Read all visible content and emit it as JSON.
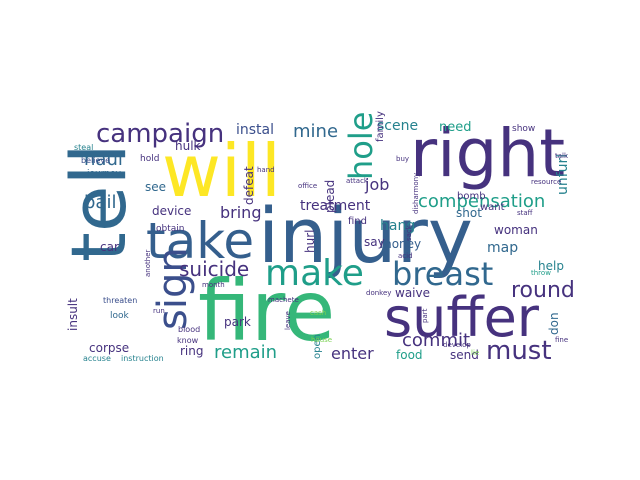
{
  "palette": {
    "dark_purple": "#44337a",
    "purple": "#46327e",
    "indigo": "#3b4f8c",
    "slate_blue": "#355f8d",
    "blue": "#31688e",
    "teal": "#26828e",
    "sea": "#1f9e89",
    "green": "#35b779",
    "lime": "#7ad151",
    "yellow": "#fde725"
  },
  "words": [
    {
      "text": "injury",
      "color": "slate_blue",
      "weight": 1.0,
      "rotated": false
    },
    {
      "text": "fire",
      "color": "green",
      "weight": 0.95,
      "rotated": false
    },
    {
      "text": "will",
      "color": "yellow",
      "weight": 0.9,
      "rotated": false
    },
    {
      "text": "tell",
      "color": "blue",
      "weight": 0.85,
      "rotated": true
    },
    {
      "text": "right",
      "color": "purple",
      "weight": 0.8,
      "rotated": false
    },
    {
      "text": "take",
      "color": "slate_blue",
      "weight": 0.8,
      "rotated": false
    },
    {
      "text": "suffer",
      "color": "purple",
      "weight": 0.75,
      "rotated": false
    },
    {
      "text": "make",
      "color": "sea",
      "weight": 0.6,
      "rotated": false
    },
    {
      "text": "breast",
      "color": "blue",
      "weight": 0.55,
      "rotated": false
    },
    {
      "text": "sign",
      "color": "indigo",
      "weight": 0.55,
      "rotated": true
    },
    {
      "text": "hole",
      "color": "sea",
      "weight": 0.5,
      "rotated": true
    },
    {
      "text": "campaign",
      "color": "purple",
      "weight": 0.45,
      "rotated": false
    },
    {
      "text": "compensation",
      "color": "sea",
      "weight": 0.35,
      "rotated": false
    },
    {
      "text": "must",
      "color": "purple",
      "weight": 0.35,
      "rotated": false
    },
    {
      "text": "suicide",
      "color": "purple",
      "weight": 0.3,
      "rotated": false
    },
    {
      "text": "remain",
      "color": "sea",
      "weight": 0.3,
      "rotated": false
    },
    {
      "text": "round",
      "color": "purple",
      "weight": 0.3,
      "rotated": false
    },
    {
      "text": "commit",
      "color": "purple",
      "weight": 0.3,
      "rotated": false
    },
    {
      "text": "enter",
      "color": "purple",
      "weight": 0.28,
      "rotated": false
    },
    {
      "text": "bring",
      "color": "purple",
      "weight": 0.28,
      "rotated": false
    },
    {
      "text": "haul",
      "color": "blue",
      "weight": 0.28,
      "rotated": false
    },
    {
      "text": "job",
      "color": "purple",
      "weight": 0.28,
      "rotated": false
    },
    {
      "text": "mine",
      "color": "blue",
      "weight": 0.25,
      "rotated": false
    },
    {
      "text": "bail",
      "color": "blue",
      "weight": 0.25,
      "rotated": false
    },
    {
      "text": "map",
      "color": "blue",
      "weight": 0.22,
      "rotated": false
    },
    {
      "text": "unfurl",
      "color": "teal",
      "weight": 0.22,
      "rotated": true
    },
    {
      "text": "treatment",
      "color": "purple",
      "weight": 0.2,
      "rotated": false
    },
    {
      "text": "device",
      "color": "purple",
      "weight": 0.2,
      "rotated": false
    },
    {
      "text": "instal",
      "color": "indigo",
      "weight": 0.2,
      "rotated": false
    },
    {
      "text": "hulk",
      "color": "purple",
      "weight": 0.2,
      "rotated": false
    },
    {
      "text": "defeat",
      "color": "purple",
      "weight": 0.2,
      "rotated": true
    },
    {
      "text": "hang",
      "color": "teal",
      "weight": 0.2,
      "rotated": false
    },
    {
      "text": "scene",
      "color": "teal",
      "weight": 0.2,
      "rotated": false
    },
    {
      "text": "need",
      "color": "sea",
      "weight": 0.2,
      "rotated": false
    },
    {
      "text": "money",
      "color": "slate_blue",
      "weight": 0.18,
      "rotated": false
    },
    {
      "text": "shot",
      "color": "blue",
      "weight": 0.2,
      "rotated": false
    },
    {
      "text": "woman",
      "color": "purple",
      "weight": 0.18,
      "rotated": false
    },
    {
      "text": "waive",
      "color": "purple",
      "weight": 0.2,
      "rotated": false
    },
    {
      "text": "say",
      "color": "purple",
      "weight": 0.18,
      "rotated": false
    },
    {
      "text": "park",
      "color": "purple",
      "weight": 0.18,
      "rotated": false
    },
    {
      "text": "ring",
      "color": "purple",
      "weight": 0.18,
      "rotated": false
    },
    {
      "text": "food",
      "color": "sea",
      "weight": 0.18,
      "rotated": false
    },
    {
      "text": "send",
      "color": "purple",
      "weight": 0.18,
      "rotated": false
    },
    {
      "text": "help",
      "color": "teal",
      "weight": 0.18,
      "rotated": false
    },
    {
      "text": "don",
      "color": "blue",
      "weight": 0.18,
      "rotated": true
    },
    {
      "text": "corpse",
      "color": "purple",
      "weight": 0.18,
      "rotated": false
    },
    {
      "text": "insult",
      "color": "purple",
      "weight": 0.18,
      "rotated": true
    },
    {
      "text": "car",
      "color": "purple",
      "weight": 0.18,
      "rotated": false
    },
    {
      "text": "see",
      "color": "blue",
      "weight": 0.15,
      "rotated": false
    },
    {
      "text": "hurl",
      "color": "purple",
      "weight": 0.15,
      "rotated": true
    },
    {
      "text": "plead",
      "color": "purple",
      "weight": 0.15,
      "rotated": true
    },
    {
      "text": "family",
      "color": "purple",
      "weight": 0.12,
      "rotated": true
    },
    {
      "text": "open",
      "color": "teal",
      "weight": 0.12,
      "rotated": true
    },
    {
      "text": "bomb",
      "color": "purple",
      "weight": 0.12,
      "rotated": false
    },
    {
      "text": "want",
      "color": "purple",
      "weight": 0.12,
      "rotated": false
    },
    {
      "text": "find",
      "color": "purple",
      "weight": 0.12,
      "rotated": false
    },
    {
      "text": "show",
      "color": "purple",
      "weight": 0.1,
      "rotated": false
    },
    {
      "text": "obtain",
      "color": "purple",
      "weight": 0.1,
      "rotated": false
    },
    {
      "text": "hold",
      "color": "purple",
      "weight": 0.1,
      "rotated": false
    },
    {
      "text": "journey",
      "color": "blue",
      "weight": 0.1,
      "rotated": false
    },
    {
      "text": "look",
      "color": "blue",
      "weight": 0.1,
      "rotated": false
    },
    {
      "text": "threaten",
      "color": "indigo",
      "weight": 0.08,
      "rotated": false
    },
    {
      "text": "blood",
      "color": "purple",
      "weight": 0.08,
      "rotated": false
    },
    {
      "text": "know",
      "color": "purple",
      "weight": 0.08,
      "rotated": false
    },
    {
      "text": "instruction",
      "color": "teal",
      "weight": 0.08,
      "rotated": false
    },
    {
      "text": "accuse",
      "color": "teal",
      "weight": 0.08,
      "rotated": false
    },
    {
      "text": "believe",
      "color": "indigo",
      "weight": 0.08,
      "rotated": false
    },
    {
      "text": "steal",
      "color": "teal",
      "weight": 0.07,
      "rotated": false
    },
    {
      "text": "hand",
      "color": "purple",
      "weight": 0.07,
      "rotated": false
    },
    {
      "text": "office",
      "color": "purple",
      "weight": 0.07,
      "rotated": false
    },
    {
      "text": "attack",
      "color": "purple",
      "weight": 0.07,
      "rotated": false
    },
    {
      "text": "develop",
      "color": "purple",
      "weight": 0.07,
      "rotated": false
    },
    {
      "text": "staff",
      "color": "purple",
      "weight": 0.07,
      "rotated": false
    },
    {
      "text": "talk",
      "color": "purple",
      "weight": 0.07,
      "rotated": false
    },
    {
      "text": "resource",
      "color": "purple",
      "weight": 0.07,
      "rotated": false
    },
    {
      "text": "machete",
      "color": "purple",
      "weight": 0.07,
      "rotated": false
    },
    {
      "text": "cash",
      "color": "lime",
      "weight": 0.07,
      "rotated": false
    },
    {
      "text": "house",
      "color": "lime",
      "weight": 0.07,
      "rotated": false
    },
    {
      "text": "leave",
      "color": "purple",
      "weight": 0.07,
      "rotated": true
    },
    {
      "text": "donkey",
      "color": "purple",
      "weight": 0.07,
      "rotated": false
    },
    {
      "text": "acid",
      "color": "purple",
      "weight": 0.07,
      "rotated": false
    },
    {
      "text": "throw",
      "color": "sea",
      "weight": 0.07,
      "rotated": false
    },
    {
      "text": "fine",
      "color": "purple",
      "weight": 0.07,
      "rotated": false
    },
    {
      "text": "month",
      "color": "purple",
      "weight": 0.07,
      "rotated": false
    },
    {
      "text": "run",
      "color": "purple",
      "weight": 0.06,
      "rotated": false
    },
    {
      "text": "another",
      "color": "purple",
      "weight": 0.06,
      "rotated": true
    },
    {
      "text": "part",
      "color": "purple",
      "weight": 0.06,
      "rotated": true
    },
    {
      "text": "sack",
      "color": "purple",
      "weight": 0.06,
      "rotated": true
    },
    {
      "text": "buy",
      "color": "purple",
      "weight": 0.06,
      "rotated": false
    },
    {
      "text": "disharmony",
      "color": "purple",
      "weight": 0.06,
      "rotated": true
    },
    {
      "text": "lie",
      "color": "lime",
      "weight": 0.05,
      "rotated": false
    }
  ]
}
